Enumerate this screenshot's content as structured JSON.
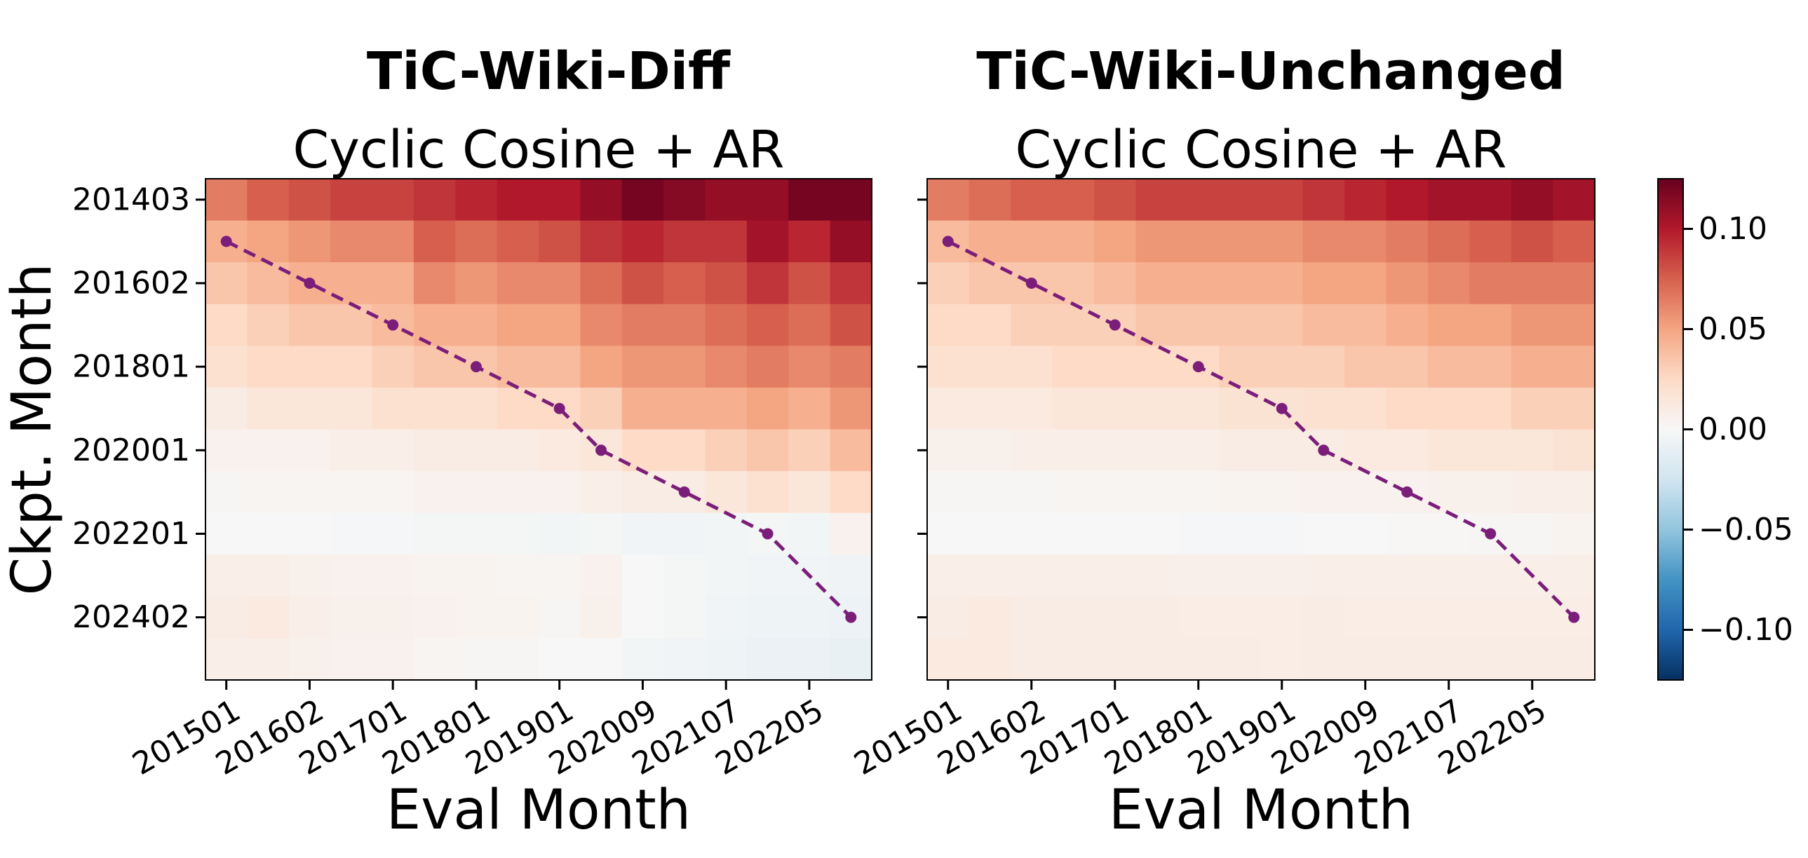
{
  "chart_data": [
    {
      "type": "heatmap",
      "title": "TiC-Wiki-Diff",
      "subtitle": "Cyclic Cosine + AR",
      "xlabel": "Eval Month",
      "ylabel": "Ckpt. Month",
      "x_categories": [
        "201501",
        null,
        "201602",
        null,
        "201701",
        null,
        "201801",
        null,
        "201901",
        null,
        "202009",
        null,
        "202107",
        null,
        "202205",
        null
      ],
      "y_categories": [
        "201403",
        null,
        "201602",
        null,
        "201801",
        null,
        "202001",
        null,
        "202201",
        null,
        "202402",
        null
      ],
      "values": [
        [
          0.065,
          0.075,
          0.08,
          0.085,
          0.085,
          0.09,
          0.095,
          0.1,
          0.1,
          0.11,
          0.12,
          0.115,
          0.11,
          0.11,
          0.12,
          0.12
        ],
        [
          0.045,
          0.05,
          0.055,
          0.06,
          0.06,
          0.075,
          0.07,
          0.075,
          0.08,
          0.09,
          0.095,
          0.09,
          0.09,
          0.105,
          0.095,
          0.11
        ],
        [
          0.035,
          0.04,
          0.045,
          0.045,
          0.045,
          0.06,
          0.055,
          0.06,
          0.06,
          0.07,
          0.08,
          0.075,
          0.08,
          0.09,
          0.08,
          0.09
        ],
        [
          0.025,
          0.03,
          0.035,
          0.035,
          0.04,
          0.045,
          0.045,
          0.05,
          0.05,
          0.06,
          0.065,
          0.065,
          0.07,
          0.075,
          0.07,
          0.08
        ],
        [
          0.02,
          0.025,
          0.025,
          0.025,
          0.03,
          0.035,
          0.035,
          0.04,
          0.04,
          0.05,
          0.055,
          0.055,
          0.06,
          0.065,
          0.06,
          0.065
        ],
        [
          0.01,
          0.015,
          0.015,
          0.015,
          0.02,
          0.02,
          0.02,
          0.025,
          0.025,
          0.03,
          0.045,
          0.045,
          0.045,
          0.05,
          0.045,
          0.055
        ],
        [
          0.005,
          0.005,
          0.005,
          0.008,
          0.008,
          0.01,
          0.01,
          0.01,
          0.012,
          0.015,
          0.025,
          0.025,
          0.03,
          0.035,
          0.03,
          0.04
        ],
        [
          0.002,
          0.003,
          0.003,
          0.003,
          0.003,
          0.005,
          0.005,
          0.005,
          0.005,
          0.008,
          0.01,
          0.01,
          0.015,
          0.02,
          0.015,
          0.025
        ],
        [
          0.0,
          0.0,
          0.0,
          -0.001,
          -0.001,
          -0.002,
          -0.002,
          -0.002,
          -0.003,
          -0.002,
          -0.004,
          -0.004,
          -0.003,
          -0.002,
          -0.003,
          0.005
        ],
        [
          0.008,
          0.008,
          0.006,
          0.005,
          0.005,
          0.004,
          0.004,
          0.003,
          0.003,
          0.005,
          0.0,
          -0.002,
          -0.003,
          -0.004,
          -0.004,
          -0.005
        ],
        [
          0.01,
          0.012,
          0.008,
          0.006,
          0.006,
          0.005,
          0.004,
          0.004,
          0.002,
          0.006,
          0.0,
          -0.002,
          -0.004,
          -0.006,
          -0.006,
          -0.007
        ],
        [
          0.008,
          0.008,
          0.006,
          0.005,
          0.005,
          0.003,
          0.002,
          0.002,
          0.0,
          0.0,
          -0.003,
          -0.004,
          -0.006,
          -0.008,
          -0.008,
          -0.01
        ]
      ],
      "line": {
        "color": "#7b1e7a",
        "x": [
          0,
          2,
          4,
          6,
          8,
          9,
          11,
          13,
          15
        ],
        "y": [
          1,
          2,
          3,
          4,
          5,
          6,
          7,
          8,
          10
        ]
      }
    },
    {
      "type": "heatmap",
      "title": "TiC-Wiki-Unchanged",
      "subtitle": "Cyclic Cosine + AR",
      "xlabel": "Eval Month",
      "sharey": 0,
      "x_categories": [
        "201501",
        null,
        "201602",
        null,
        "201701",
        null,
        "201801",
        null,
        "201901",
        null,
        "202009",
        null,
        "202107",
        null,
        "202205",
        null
      ],
      "values": [
        [
          0.065,
          0.07,
          0.075,
          0.075,
          0.08,
          0.085,
          0.085,
          0.085,
          0.085,
          0.09,
          0.095,
          0.1,
          0.105,
          0.105,
          0.11,
          0.105
        ],
        [
          0.04,
          0.045,
          0.045,
          0.045,
          0.05,
          0.055,
          0.055,
          0.055,
          0.055,
          0.06,
          0.06,
          0.065,
          0.07,
          0.075,
          0.08,
          0.075
        ],
        [
          0.03,
          0.035,
          0.035,
          0.035,
          0.04,
          0.045,
          0.045,
          0.045,
          0.045,
          0.05,
          0.05,
          0.055,
          0.06,
          0.065,
          0.065,
          0.065
        ],
        [
          0.025,
          0.025,
          0.03,
          0.03,
          0.03,
          0.035,
          0.035,
          0.035,
          0.035,
          0.04,
          0.04,
          0.045,
          0.05,
          0.05,
          0.055,
          0.055
        ],
        [
          0.02,
          0.02,
          0.02,
          0.025,
          0.025,
          0.025,
          0.025,
          0.03,
          0.03,
          0.03,
          0.035,
          0.035,
          0.04,
          0.04,
          0.045,
          0.045
        ],
        [
          0.012,
          0.012,
          0.012,
          0.015,
          0.015,
          0.015,
          0.015,
          0.018,
          0.018,
          0.02,
          0.02,
          0.025,
          0.025,
          0.025,
          0.03,
          0.03
        ],
        [
          0.006,
          0.006,
          0.008,
          0.008,
          0.008,
          0.008,
          0.008,
          0.01,
          0.01,
          0.01,
          0.012,
          0.012,
          0.015,
          0.015,
          0.015,
          0.018
        ],
        [
          0.002,
          0.002,
          0.002,
          0.003,
          0.003,
          0.003,
          0.003,
          0.004,
          0.004,
          0.005,
          0.005,
          0.005,
          0.006,
          0.006,
          0.008,
          0.008
        ],
        [
          0.0,
          0.0,
          0.0,
          0.0,
          0.0,
          0.0,
          -0.001,
          -0.001,
          -0.001,
          0.0,
          0.0,
          0.001,
          0.001,
          0.002,
          0.002,
          0.004
        ],
        [
          0.008,
          0.008,
          0.008,
          0.008,
          0.008,
          0.008,
          0.007,
          0.007,
          0.007,
          0.008,
          0.008,
          0.008,
          0.008,
          0.008,
          0.008,
          0.008
        ],
        [
          0.01,
          0.012,
          0.01,
          0.01,
          0.01,
          0.01,
          0.009,
          0.009,
          0.009,
          0.01,
          0.009,
          0.009,
          0.009,
          0.009,
          0.009,
          0.009
        ],
        [
          0.012,
          0.012,
          0.01,
          0.01,
          0.01,
          0.01,
          0.01,
          0.01,
          0.009,
          0.01,
          0.01,
          0.01,
          0.01,
          0.01,
          0.01,
          0.01
        ]
      ],
      "line": {
        "color": "#7b1e7a",
        "x": [
          0,
          2,
          4,
          6,
          8,
          9,
          11,
          13,
          15
        ],
        "y": [
          1,
          2,
          3,
          4,
          5,
          6,
          7,
          8,
          10
        ]
      }
    },
    {
      "type": "colorbar",
      "clim": [
        -0.125,
        0.125
      ],
      "colormap": [
        "#053061",
        "#2166ac",
        "#4393c3",
        "#92c5de",
        "#d1e5f0",
        "#f7f7f7",
        "#fddbc7",
        "#f4a582",
        "#d6604d",
        "#b2182b",
        "#67001f"
      ],
      "ticks": [
        {
          "value": 0.1,
          "label": "0.10"
        },
        {
          "value": 0.05,
          "label": "0.05"
        },
        {
          "value": 0,
          "label": "0.00"
        },
        {
          "value": -0.05,
          "label": "−0.05"
        },
        {
          "value": -0.1,
          "label": "−0.10"
        }
      ]
    }
  ]
}
